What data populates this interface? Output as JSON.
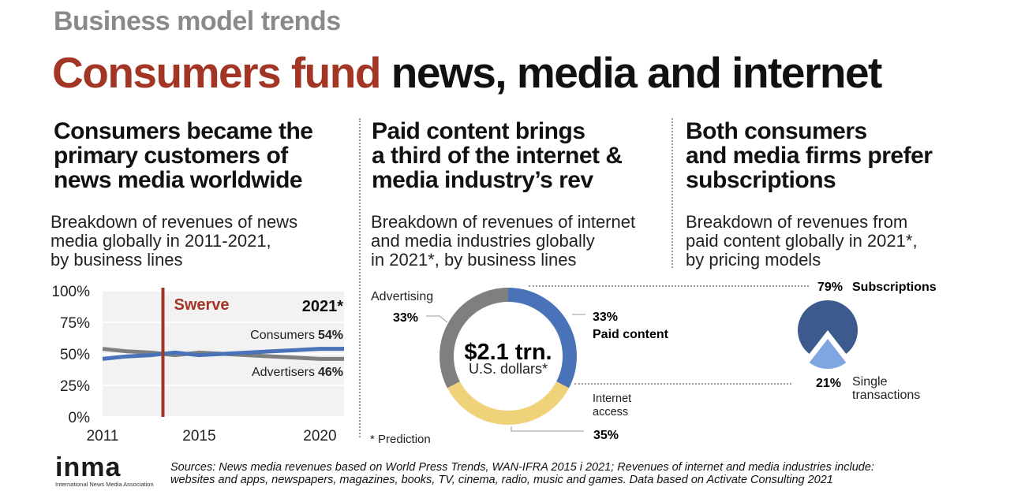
{
  "header": {
    "kicker": "Business model trends",
    "headline_red": "Consumers fund",
    "headline_rest": " news, media and internet"
  },
  "colors": {
    "accent_red": "#a33525",
    "consumers_blue": "#4a72b8",
    "advertisers_grey": "#7f7f7f",
    "paid_content": "#4a72b8",
    "internet_access": "#f0d27a",
    "advertising": "#7f7f7f",
    "subscriptions": "#3c5a8e",
    "single_transactions": "#7fa6e0"
  },
  "columns": [
    {
      "title_lines": [
        "Consumers became the",
        "primary customers of",
        "news media worldwide"
      ],
      "subtitle_lines": [
        "Breakdown of revenues of news",
        "media globally in 2011-2021,",
        "by business lines"
      ]
    },
    {
      "title_lines": [
        "Paid content brings",
        "a third of the internet &",
        "media industry’s rev"
      ],
      "subtitle_lines": [
        "Breakdown of revenues of internet",
        "and media industries globally",
        "in 2021*, by business lines"
      ]
    },
    {
      "title_lines": [
        "Both consumers",
        "and media firms prefer",
        "subscriptions"
      ],
      "subtitle_lines": [
        "Breakdown of revenues from",
        "paid content globally in 2021*,",
        "by pricing models"
      ]
    }
  ],
  "chart_data": [
    {
      "type": "line",
      "x": [
        2011,
        2012,
        2013,
        2014,
        2015,
        2016,
        2017,
        2018,
        2019,
        2020,
        2021
      ],
      "series": [
        {
          "name": "Consumers",
          "values": [
            46,
            48,
            49,
            51,
            49,
            50,
            51,
            52,
            53,
            54,
            54
          ]
        },
        {
          "name": "Advertisers",
          "values": [
            54,
            52,
            51,
            49,
            51,
            50,
            49,
            48,
            47,
            46,
            46
          ]
        }
      ],
      "ylim": [
        0,
        100
      ],
      "xlim": [
        2011,
        2021
      ],
      "yticks": [
        "100%",
        "75%",
        "50%",
        "25%",
        "0%"
      ],
      "ytick_values": [
        100,
        75,
        50,
        25,
        0
      ],
      "xticks": [
        "2011",
        "2015",
        "2020"
      ],
      "xtick_values": [
        2011,
        2015,
        2020
      ],
      "marker": {
        "year": 2013.5,
        "label": "Swerve"
      },
      "year_label": "2021*",
      "end_labels": [
        {
          "name": "Consumers",
          "value": "54%"
        },
        {
          "name": "Advertisers",
          "value": "46%"
        }
      ]
    },
    {
      "type": "pie",
      "style": "donut",
      "slices": [
        {
          "label": "Paid content",
          "value": 33,
          "display": "33%"
        },
        {
          "label": "Internet access",
          "value": 35,
          "display": "35%"
        },
        {
          "label": "Advertising",
          "value": 33,
          "display": "33%"
        }
      ],
      "center_value": "$2.1 trn.",
      "center_unit": "U.S. dollars*",
      "note": "* Prediction"
    },
    {
      "type": "pie",
      "slices": [
        {
          "label": "Subscriptions",
          "value": 79,
          "display": "79%"
        },
        {
          "label": "Single transactions",
          "value": 21,
          "display": "21%"
        }
      ]
    }
  ],
  "chart_labels": {
    "advertising": "Advertising",
    "paid_content": "Paid content",
    "internet_access_lines": [
      "Internet",
      "access"
    ],
    "subscriptions": "Subscriptions",
    "single_lines": [
      "Single",
      "transactions"
    ]
  },
  "footer": {
    "logo_text": "inma",
    "logo_caption": "International News Media Association",
    "sources_line1": "Sources: News media revenues based on World Press Trends, WAN-IFRA 2015 i 2021; Revenues of internet and media industries include:",
    "sources_line2": "websites and apps, newspapers, magazines, books, TV, cinema, radio, music and games. Data based on Activate Consulting 2021"
  }
}
